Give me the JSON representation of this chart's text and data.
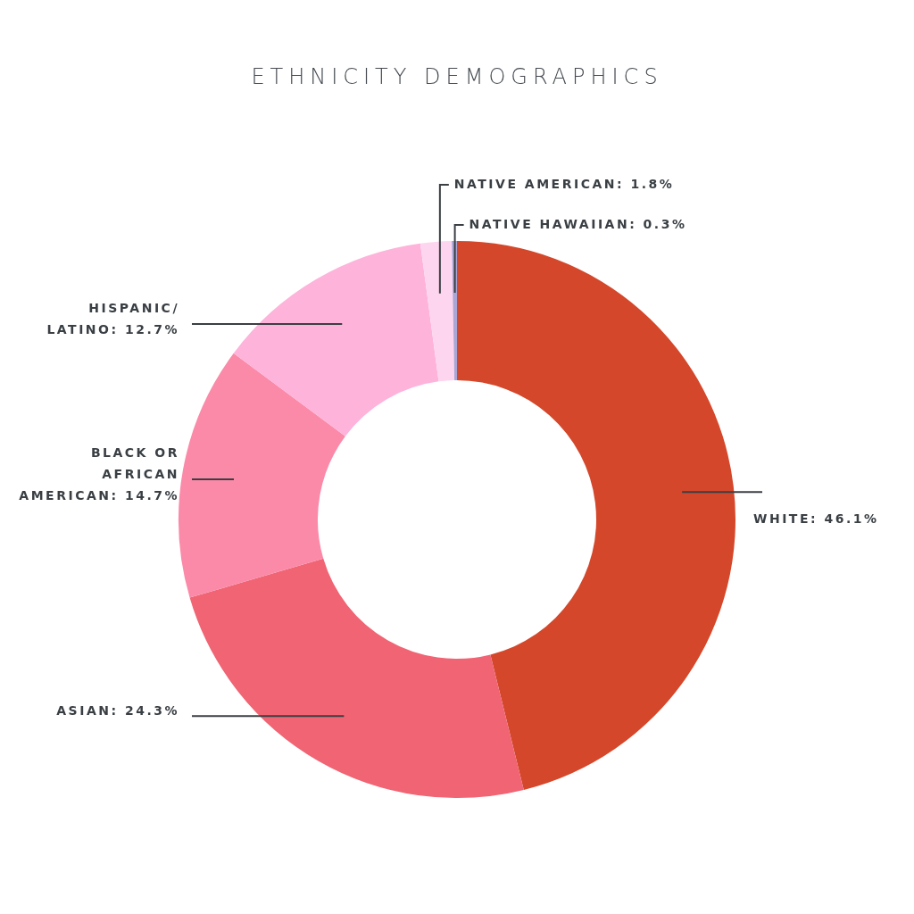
{
  "chart_data": {
    "type": "donut",
    "title": "ETHNICITY DEMOGRAPHICS",
    "categories": [
      "WHITE",
      "ASIAN",
      "BLACK OR AFRICAN AMERICAN",
      "HISPANIC/LATINO",
      "NATIVE AMERICAN",
      "NATIVE HAWAIIAN"
    ],
    "values": [
      46.1,
      24.3,
      14.7,
      12.7,
      1.8,
      0.3
    ],
    "value_labels": [
      "46.1%",
      "24.3%",
      "14.7%",
      "12.7%",
      "1.8%",
      "0.3%"
    ],
    "colors": [
      "#d4472a",
      "#f06473",
      "#fb8aa8",
      "#feb3da",
      "#fed5ee",
      "#aaa6d6"
    ]
  }
}
